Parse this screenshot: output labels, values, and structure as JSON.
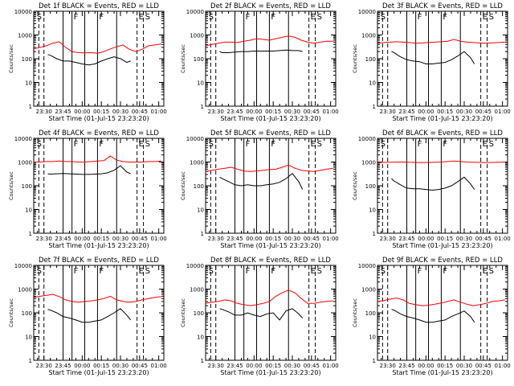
{
  "chart_data": {
    "type": "line",
    "ylabel": "Counts/sec",
    "xlabel": "Start Time (01-Jul-15 23:23:20)",
    "yscale": "log",
    "ylim": [
      1,
      10000
    ],
    "y_ticks": [
      1,
      10,
      100,
      1000,
      10000
    ],
    "y_tick_labels": [
      "1",
      "10",
      "100",
      "1000",
      "10000"
    ],
    "xlim_minutes_after_2300": [
      22,
      124
    ],
    "x_ticks": [
      30,
      45,
      60,
      75,
      90,
      105,
      120
    ],
    "x_tick_labels": [
      "23:30",
      "23:45",
      "00:00",
      "00:15",
      "00:30",
      "00:45",
      "01:00"
    ],
    "x_minor_step_minutes": 5,
    "series_colors": {
      "events": "#000000",
      "lld": "#ff0000"
    },
    "legend": "in title",
    "markers": {
      "dashed_solid_order": "dashed lines mark SAA boundaries, solid lines mark F (flare) intervals",
      "dashed_x": [
        26,
        30,
        103,
        108
      ],
      "solid_x": [
        45,
        52,
        62,
        72,
        87
      ],
      "region_labels": [
        {
          "text": "S",
          "x": 23
        },
        {
          "text": "F",
          "x": 52
        },
        {
          "text": "F",
          "x": 72
        },
        {
          "text": "E",
          "x": 103
        },
        {
          "text": "S",
          "x": 108
        }
      ]
    },
    "panels": [
      {
        "title": "Det 1f BLACK = Events, RED = LLD",
        "lld": {
          "x": [
            22,
            27,
            32,
            37,
            42,
            47,
            52,
            57,
            62,
            67,
            72,
            77,
            82,
            87,
            92,
            97,
            102,
            107,
            112,
            117,
            122
          ],
          "y": [
            260,
            300,
            350,
            450,
            520,
            300,
            200,
            180,
            175,
            180,
            170,
            200,
            260,
            320,
            380,
            250,
            200,
            250,
            350,
            380,
            420
          ]
        },
        "events": {
          "x": [
            33,
            35,
            40,
            45,
            50,
            55,
            60,
            65,
            70,
            75,
            80,
            85,
            90,
            95,
            98
          ],
          "y": [
            150,
            140,
            100,
            80,
            80,
            70,
            60,
            55,
            60,
            80,
            100,
            120,
            100,
            70,
            80
          ]
        }
      },
      {
        "title": "Det 2f BLACK = Events, RED = LLD",
        "lld": {
          "x": [
            22,
            27,
            32,
            37,
            42,
            47,
            52,
            57,
            62,
            67,
            72,
            77,
            82,
            87,
            92,
            97,
            102,
            107,
            112,
            117,
            122
          ],
          "y": [
            350,
            400,
            450,
            500,
            500,
            480,
            550,
            600,
            700,
            650,
            600,
            700,
            800,
            900,
            800,
            600,
            500,
            450,
            500,
            550,
            550
          ]
        },
        "events": {
          "x": [
            33,
            35,
            40,
            45,
            50,
            55,
            60,
            65,
            70,
            75,
            80,
            85,
            90,
            95,
            98
          ],
          "y": [
            200,
            180,
            180,
            190,
            200,
            200,
            210,
            210,
            210,
            210,
            220,
            230,
            220,
            220,
            200
          ]
        }
      },
      {
        "title": "Det 3f BLACK = Events, RED = LLD",
        "lld": {
          "x": [
            22,
            27,
            32,
            37,
            42,
            47,
            52,
            57,
            62,
            67,
            72,
            77,
            82,
            87,
            92,
            97,
            102,
            107,
            112,
            117,
            122
          ],
          "y": [
            450,
            480,
            500,
            520,
            500,
            480,
            450,
            460,
            480,
            500,
            520,
            550,
            650,
            550,
            500,
            480,
            460,
            450,
            470,
            480,
            500
          ]
        },
        "events": {
          "x": [
            33,
            35,
            40,
            45,
            50,
            55,
            60,
            65,
            70,
            75,
            80,
            85,
            90,
            95,
            98
          ],
          "y": [
            200,
            180,
            120,
            90,
            80,
            75,
            60,
            60,
            65,
            70,
            90,
            130,
            200,
            110,
            60
          ]
        }
      },
      {
        "title": "Det 4f BLACK = Events, RED = LLD",
        "lld": {
          "x": [
            22,
            27,
            32,
            37,
            42,
            47,
            52,
            57,
            62,
            67,
            72,
            77,
            82,
            87,
            92,
            97,
            102,
            107,
            112,
            117,
            122
          ],
          "y": [
            1000,
            1000,
            1050,
            1050,
            1100,
            1050,
            1050,
            1000,
            1000,
            1050,
            1100,
            1150,
            1800,
            1200,
            1050,
            1000,
            1000,
            1000,
            1050,
            1050,
            1100
          ]
        },
        "events": {
          "x": [
            33,
            35,
            40,
            45,
            50,
            55,
            60,
            65,
            70,
            75,
            80,
            85,
            90,
            95,
            98
          ],
          "y": [
            320,
            310,
            320,
            330,
            320,
            310,
            300,
            300,
            310,
            320,
            350,
            450,
            700,
            380,
            320
          ]
        }
      },
      {
        "title": "Det 5f BLACK = Events, RED = LLD",
        "lld": {
          "x": [
            22,
            27,
            32,
            37,
            42,
            47,
            52,
            57,
            62,
            67,
            72,
            77,
            82,
            87,
            92,
            97,
            102,
            107,
            112,
            117,
            122
          ],
          "y": [
            400,
            450,
            500,
            550,
            600,
            500,
            420,
            400,
            420,
            450,
            480,
            500,
            600,
            750,
            550,
            450,
            420,
            400,
            450,
            500,
            550
          ]
        },
        "events": {
          "x": [
            33,
            35,
            40,
            45,
            50,
            55,
            60,
            65,
            70,
            75,
            80,
            85,
            90,
            95,
            98
          ],
          "y": [
            230,
            200,
            150,
            110,
            100,
            110,
            100,
            100,
            110,
            120,
            140,
            200,
            330,
            150,
            70
          ]
        }
      },
      {
        "title": "Det 6f BLACK = Events, RED = LLD",
        "lld": {
          "x": [
            22,
            27,
            32,
            37,
            42,
            47,
            52,
            57,
            62,
            67,
            72,
            77,
            82,
            87,
            92,
            97,
            102,
            107,
            112,
            117,
            122
          ],
          "y": [
            950,
            960,
            980,
            1000,
            1000,
            980,
            960,
            950,
            960,
            980,
            1000,
            1050,
            1100,
            1050,
            1000,
            980,
            960,
            950,
            960,
            980,
            1000
          ]
        },
        "events": {
          "x": [
            33,
            35,
            40,
            45,
            50,
            55,
            60,
            65,
            70,
            75,
            80,
            85,
            90,
            95,
            98
          ],
          "y": [
            200,
            160,
            110,
            80,
            75,
            75,
            70,
            65,
            70,
            80,
            100,
            150,
            230,
            120,
            70
          ]
        }
      },
      {
        "title": "Det 7f BLACK = Events, RED = LLD",
        "lld": {
          "x": [
            22,
            27,
            32,
            37,
            42,
            47,
            52,
            57,
            62,
            67,
            72,
            77,
            82,
            87,
            92,
            97,
            102,
            107,
            112,
            117,
            122
          ],
          "y": [
            450,
            500,
            550,
            600,
            480,
            350,
            300,
            280,
            300,
            320,
            350,
            400,
            500,
            350,
            300,
            280,
            300,
            350,
            400,
            450,
            480
          ]
        },
        "events": {
          "x": [
            33,
            35,
            40,
            45,
            50,
            55,
            60,
            65,
            70,
            75,
            80,
            85,
            90,
            95,
            98
          ],
          "y": [
            140,
            130,
            100,
            70,
            60,
            50,
            40,
            40,
            45,
            50,
            70,
            100,
            150,
            80,
            50
          ]
        }
      },
      {
        "title": "Det 8f BLACK = Events, RED = LLD",
        "lld": {
          "x": [
            22,
            27,
            32,
            37,
            42,
            47,
            52,
            57,
            62,
            67,
            72,
            77,
            82,
            87,
            92,
            97,
            102,
            107,
            112,
            117,
            122
          ],
          "y": [
            250,
            280,
            300,
            350,
            320,
            250,
            220,
            200,
            220,
            250,
            300,
            500,
            700,
            900,
            700,
            400,
            250,
            250,
            280,
            300,
            320
          ]
        },
        "events": {
          "x": [
            33,
            35,
            40,
            45,
            50,
            55,
            60,
            65,
            70,
            75,
            80,
            85,
            90,
            95,
            98
          ],
          "y": [
            150,
            140,
            110,
            80,
            80,
            100,
            80,
            70,
            90,
            100,
            50,
            120,
            150,
            90,
            60
          ]
        }
      },
      {
        "title": "Det 9f BLACK = Events, RED = LLD",
        "lld": {
          "x": [
            22,
            27,
            32,
            37,
            42,
            47,
            52,
            57,
            62,
            67,
            72,
            77,
            82,
            87,
            92,
            97,
            102,
            107,
            112,
            117,
            122
          ],
          "y": [
            300,
            330,
            380,
            420,
            350,
            250,
            220,
            200,
            210,
            230,
            260,
            300,
            350,
            280,
            230,
            200,
            220,
            250,
            300,
            320,
            350
          ]
        },
        "events": {
          "x": [
            33,
            35,
            40,
            45,
            50,
            55,
            60,
            65,
            70,
            75,
            80,
            85,
            90,
            95,
            98
          ],
          "y": [
            140,
            130,
            90,
            70,
            60,
            50,
            40,
            40,
            45,
            50,
            70,
            90,
            120,
            70,
            40
          ]
        }
      }
    ]
  }
}
